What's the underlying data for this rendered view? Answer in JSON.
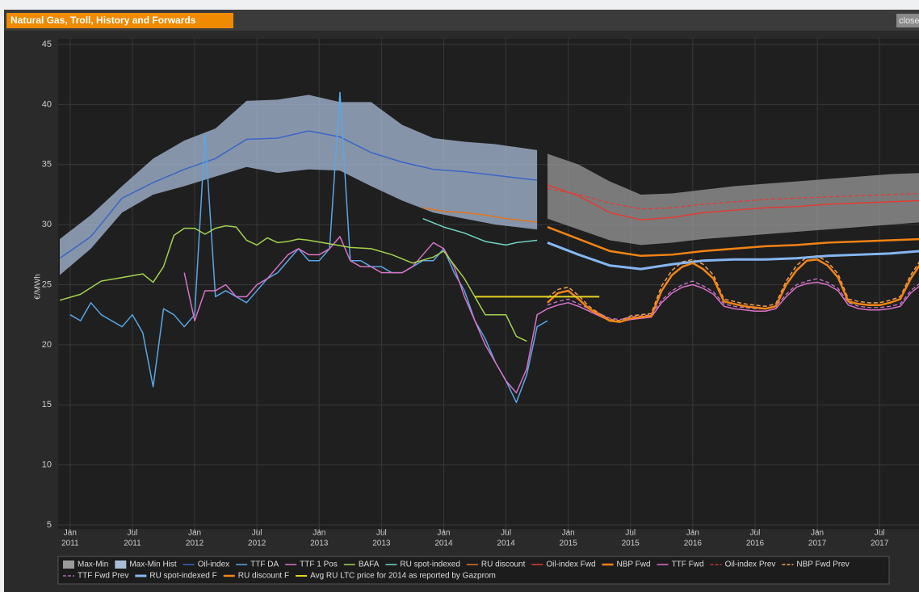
{
  "chart_data": {
    "type": "line",
    "title": "Natural Gas, Troll, History and Forwards",
    "close_label": "close",
    "y_label": "€/MWh",
    "xlim": [
      "2010-12",
      "2017-12"
    ],
    "ylim": [
      5,
      45
    ],
    "yticks": [
      5,
      10,
      15,
      20,
      25,
      30,
      35,
      40,
      45
    ],
    "grid": true,
    "legend": "bottom",
    "xticks": [
      {
        "value": "2011-01",
        "label": [
          "Jan",
          "2011"
        ]
      },
      {
        "value": "2011-07",
        "label": [
          "Jul",
          "2011"
        ]
      },
      {
        "value": "2012-01",
        "label": [
          "Jan",
          "2012"
        ]
      },
      {
        "value": "2012-07",
        "label": [
          "Jul",
          "2012"
        ]
      },
      {
        "value": "2013-01",
        "label": [
          "Jan",
          "2013"
        ]
      },
      {
        "value": "2013-07",
        "label": [
          "Jul",
          "2013"
        ]
      },
      {
        "value": "2014-01",
        "label": [
          "Jan",
          "2014"
        ]
      },
      {
        "value": "2014-07",
        "label": [
          "Jul",
          "2014"
        ]
      },
      {
        "value": "2015-01",
        "label": [
          "Jan",
          "2015"
        ]
      },
      {
        "value": "2015-07",
        "label": [
          "Jul",
          "2015"
        ]
      },
      {
        "value": "2016-01",
        "label": [
          "Jan",
          "2016"
        ]
      },
      {
        "value": "2016-07",
        "label": [
          "Jul",
          "2016"
        ]
      },
      {
        "value": "2017-01",
        "label": [
          "Jan",
          "2017"
        ]
      },
      {
        "value": "2017-07",
        "label": [
          "Jul",
          "2017"
        ]
      }
    ],
    "series": [
      {
        "name": "Max-Min",
        "kind": "band",
        "color": "#9a9a9a",
        "x": [
          "2014-11",
          "2015-02",
          "2015-05",
          "2015-08",
          "2015-11",
          "2016-02",
          "2016-05",
          "2016-08",
          "2016-11",
          "2017-02",
          "2017-05",
          "2017-08",
          "2017-11"
        ],
        "upper": [
          35.9,
          35.0,
          33.6,
          32.5,
          32.6,
          32.9,
          33.2,
          33.4,
          33.6,
          33.8,
          34.0,
          34.2,
          34.3
        ],
        "lower": [
          30.5,
          29.6,
          28.7,
          28.3,
          28.5,
          28.8,
          29.0,
          29.2,
          29.4,
          29.6,
          29.8,
          30.0,
          30.2
        ]
      },
      {
        "name": "Max-Min Hist",
        "kind": "band",
        "color": "#a8bcd8",
        "x": [
          "2010-12",
          "2011-03",
          "2011-06",
          "2011-09",
          "2011-12",
          "2012-03",
          "2012-06",
          "2012-09",
          "2012-12",
          "2013-03",
          "2013-06",
          "2013-09",
          "2013-12",
          "2014-03",
          "2014-06",
          "2014-10"
        ],
        "upper": [
          28.8,
          30.8,
          33.2,
          35.5,
          37.0,
          38.0,
          40.3,
          40.4,
          40.8,
          40.2,
          40.2,
          38.3,
          37.2,
          36.9,
          36.7,
          36.2
        ],
        "lower": [
          25.8,
          28.0,
          31.0,
          32.5,
          33.2,
          34.0,
          34.8,
          34.3,
          34.6,
          34.5,
          33.2,
          32.0,
          31.0,
          30.5,
          30.0,
          29.6
        ]
      },
      {
        "name": "Oil-index",
        "kind": "line",
        "color": "#3b66c4",
        "width": 1.5,
        "x": [
          "2010-12",
          "2011-03",
          "2011-06",
          "2011-09",
          "2011-12",
          "2012-03",
          "2012-06",
          "2012-09",
          "2012-12",
          "2013-03",
          "2013-06",
          "2013-09",
          "2013-12",
          "2014-03",
          "2014-06",
          "2014-10"
        ],
        "values": [
          27.2,
          29.0,
          32.2,
          33.5,
          34.6,
          35.5,
          37.1,
          37.2,
          37.8,
          37.3,
          36.0,
          35.2,
          34.6,
          34.4,
          34.1,
          33.7
        ]
      },
      {
        "name": "TTF DA",
        "kind": "line",
        "color": "#5aa6e6",
        "width": 1.5,
        "x": [
          "2011-01",
          "2011-02",
          "2011-03",
          "2011-04",
          "2011-05",
          "2011-06",
          "2011-07",
          "2011-08",
          "2011-09",
          "2011-10",
          "2011-11",
          "2011-12",
          "2012-01",
          "2012-02",
          "2012-03",
          "2012-04",
          "2012-05",
          "2012-06",
          "2012-07",
          "2012-08",
          "2012-09",
          "2012-10",
          "2012-11",
          "2012-12",
          "2013-01",
          "2013-02",
          "2013-03",
          "2013-04",
          "2013-05",
          "2013-06",
          "2013-07",
          "2013-08",
          "2013-09",
          "2013-10",
          "2013-11",
          "2013-12",
          "2014-01",
          "2014-02",
          "2014-03",
          "2014-04",
          "2014-05",
          "2014-06",
          "2014-07",
          "2014-08",
          "2014-09",
          "2014-10",
          "2014-11"
        ],
        "values": [
          22.5,
          22,
          23.5,
          22.5,
          22,
          21.5,
          22.5,
          21,
          16.5,
          23,
          22.5,
          21.5,
          22.5,
          37.5,
          24,
          24.5,
          24,
          23.5,
          24.5,
          25.5,
          26,
          27,
          28,
          27,
          27,
          28,
          41,
          27,
          27,
          26.5,
          26.5,
          26,
          26,
          26.5,
          27,
          27,
          28,
          26,
          24.5,
          22,
          20.5,
          18.5,
          17,
          15.2,
          17.5,
          21.5,
          22
        ]
      },
      {
        "name": "TTF 1 Pos",
        "kind": "line",
        "color": "#d873c8",
        "width": 1.5,
        "x": [
          "2011-12",
          "2012-01",
          "2012-02",
          "2012-03",
          "2012-04",
          "2012-05",
          "2012-06",
          "2012-07",
          "2012-08",
          "2012-09",
          "2012-10",
          "2012-11",
          "2012-12",
          "2013-01",
          "2013-02",
          "2013-03",
          "2013-04",
          "2013-05",
          "2013-06",
          "2013-07",
          "2013-08",
          "2013-09",
          "2013-10",
          "2013-11",
          "2013-12",
          "2014-01",
          "2014-02",
          "2014-03",
          "2014-04",
          "2014-05",
          "2014-06",
          "2014-07",
          "2014-08",
          "2014-09",
          "2014-10",
          "2014-11"
        ],
        "values": [
          26,
          22,
          24.5,
          24.5,
          25,
          24,
          24,
          25,
          25.5,
          26.5,
          27.5,
          28,
          27.5,
          27.5,
          28,
          29,
          27,
          26.5,
          26.5,
          26,
          26,
          26,
          26.5,
          27.5,
          28.5,
          28,
          26.5,
          24,
          22,
          20,
          18.5,
          17,
          16,
          18,
          22.5,
          23
        ]
      },
      {
        "name": "BAFA",
        "kind": "line",
        "color": "#a4d24e",
        "width": 1.5,
        "x": [
          "2010-12",
          "2011-02",
          "2011-04",
          "2011-06",
          "2011-08",
          "2011-09",
          "2011-10",
          "2011-11",
          "2011-12",
          "2012-01",
          "2012-02",
          "2012-03",
          "2012-04",
          "2012-05",
          "2012-06",
          "2012-07",
          "2012-08",
          "2012-09",
          "2012-10",
          "2012-11",
          "2012-12",
          "2013-02",
          "2013-04",
          "2013-06",
          "2013-08",
          "2013-10",
          "2013-12",
          "2014-01",
          "2014-03",
          "2014-05",
          "2014-07",
          "2014-08",
          "2014-09"
        ],
        "values": [
          23.7,
          24.2,
          25.3,
          25.6,
          25.9,
          25.2,
          26.5,
          29.1,
          29.7,
          29.7,
          29.2,
          29.7,
          29.9,
          29.8,
          28.7,
          28.3,
          28.9,
          28.5,
          28.6,
          28.8,
          28.7,
          28.4,
          28.1,
          28.0,
          27.5,
          26.8,
          27.3,
          27.8,
          25.5,
          22.5,
          22.5,
          20.7,
          20.3
        ]
      },
      {
        "name": "RU spot-indexed",
        "kind": "line",
        "color": "#72d4c4",
        "width": 1.5,
        "x": [
          "2013-11",
          "2014-01",
          "2014-03",
          "2014-05",
          "2014-07",
          "2014-08",
          "2014-10"
        ],
        "values": [
          30.5,
          29.8,
          29.3,
          28.6,
          28.3,
          28.5,
          28.7
        ]
      },
      {
        "name": "RU discount",
        "kind": "line",
        "color": "#e2741e",
        "width": 1.5,
        "x": [
          "2013-11",
          "2014-01",
          "2014-03",
          "2014-05",
          "2014-07",
          "2014-10"
        ],
        "values": [
          31.4,
          31.1,
          31.0,
          30.8,
          30.5,
          30.2
        ]
      },
      {
        "name": "Oil-index Fwd",
        "kind": "line",
        "color": "#e23a34",
        "width": 1.5,
        "x": [
          "2014-11",
          "2015-02",
          "2015-05",
          "2015-08",
          "2015-11",
          "2016-02",
          "2016-05",
          "2016-08",
          "2016-11",
          "2017-02",
          "2017-05",
          "2017-08",
          "2017-11"
        ],
        "values": [
          33.3,
          32.4,
          31.0,
          30.4,
          30.6,
          31.0,
          31.2,
          31.4,
          31.5,
          31.7,
          31.8,
          31.9,
          32.0
        ]
      },
      {
        "name": "NBP Fwd",
        "kind": "line",
        "color": "#f28414",
        "width": 2.5,
        "x": [
          "2014-11",
          "2015-02",
          "2015-05",
          "2015-08",
          "2015-11",
          "2016-02",
          "2016-05",
          "2016-08",
          "2016-11",
          "2017-02",
          "2017-05",
          "2017-08",
          "2017-11"
        ],
        "values": [
          29.8,
          28.8,
          27.8,
          27.4,
          27.5,
          27.8,
          28.0,
          28.2,
          28.3,
          28.5,
          28.6,
          28.7,
          28.8
        ]
      },
      {
        "name": "TTF Fwd",
        "kind": "line",
        "color": "#d873c8",
        "width": 1.5,
        "x": [
          "2014-11",
          "2014-12",
          "2015-01",
          "2015-02",
          "2015-03",
          "2015-04",
          "2015-05",
          "2015-06",
          "2015-07",
          "2015-08",
          "2015-09",
          "2015-10",
          "2015-11",
          "2015-12",
          "2016-01",
          "2016-02",
          "2016-03",
          "2016-04",
          "2016-05",
          "2016-06",
          "2016-07",
          "2016-08",
          "2016-09",
          "2016-10",
          "2016-11",
          "2016-12",
          "2017-01",
          "2017-02",
          "2017-03",
          "2017-04",
          "2017-05",
          "2017-06",
          "2017-07",
          "2017-08",
          "2017-09",
          "2017-10",
          "2017-11"
        ],
        "values": [
          23.0,
          23.3,
          23.5,
          23.2,
          22.8,
          22.4,
          22.0,
          21.9,
          22.1,
          22.2,
          22.3,
          23.5,
          24.3,
          24.8,
          25.0,
          24.7,
          24.2,
          23.2,
          23.0,
          22.9,
          22.8,
          22.8,
          23.0,
          24.0,
          24.8,
          25.1,
          25.2,
          25.0,
          24.5,
          23.3,
          23.0,
          22.9,
          22.9,
          23.0,
          23.2,
          24.3,
          25.0
        ]
      },
      {
        "name": "Oil-index Prev",
        "kind": "line",
        "color": "#e23a34",
        "width": 1.3,
        "dashed": true,
        "x": [
          "2014-11",
          "2015-02",
          "2015-05",
          "2015-08",
          "2015-11",
          "2016-02",
          "2016-05",
          "2016-08",
          "2016-11",
          "2017-02",
          "2017-05",
          "2017-08",
          "2017-11"
        ],
        "values": [
          33.0,
          32.5,
          31.8,
          31.3,
          31.4,
          31.7,
          31.9,
          32.1,
          32.2,
          32.3,
          32.4,
          32.5,
          32.6
        ]
      },
      {
        "name": "NBP Fwd Prev",
        "kind": "line",
        "color": "#f0a050",
        "width": 1.5,
        "dashed": true,
        "x": [
          "2014-11",
          "2014-12",
          "2015-01",
          "2015-02",
          "2015-03",
          "2015-04",
          "2015-05",
          "2015-06",
          "2015-07",
          "2015-08",
          "2015-09",
          "2015-10",
          "2015-11",
          "2015-12",
          "2016-01",
          "2016-02",
          "2016-03",
          "2016-04",
          "2016-05",
          "2016-06",
          "2016-07",
          "2016-08",
          "2016-09",
          "2016-10",
          "2016-11",
          "2016-12",
          "2017-01",
          "2017-02",
          "2017-03",
          "2017-04",
          "2017-05",
          "2017-06",
          "2017-07",
          "2017-08",
          "2017-09",
          "2017-10",
          "2017-11"
        ],
        "values": [
          23.9,
          24.6,
          24.8,
          24.1,
          23.2,
          22.6,
          22.1,
          22.0,
          22.4,
          22.5,
          22.6,
          24.9,
          26.2,
          26.9,
          27.1,
          26.7,
          25.8,
          23.8,
          23.6,
          23.4,
          23.3,
          23.2,
          23.4,
          25.3,
          26.6,
          27.3,
          27.4,
          26.9,
          25.9,
          23.8,
          23.6,
          23.5,
          23.5,
          23.7,
          24.0,
          25.8,
          27.1
        ]
      },
      {
        "name": "TTF Fwd Prev",
        "kind": "line",
        "color": "#c878c8",
        "width": 1.3,
        "dashed": true,
        "x": [
          "2014-11",
          "2014-12",
          "2015-01",
          "2015-02",
          "2015-03",
          "2015-04",
          "2015-05",
          "2015-06",
          "2015-07",
          "2015-08",
          "2015-09",
          "2015-10",
          "2015-11",
          "2015-12",
          "2016-01",
          "2016-02",
          "2016-03",
          "2016-04",
          "2016-05",
          "2016-06",
          "2016-07",
          "2016-08",
          "2016-09",
          "2016-10",
          "2016-11",
          "2016-12",
          "2017-01",
          "2017-02",
          "2017-03",
          "2017-04",
          "2017-05",
          "2017-06",
          "2017-07",
          "2017-08",
          "2017-09",
          "2017-10",
          "2017-11"
        ],
        "values": [
          23.3,
          23.6,
          23.8,
          23.4,
          23.0,
          22.6,
          22.2,
          22.1,
          22.3,
          22.4,
          22.5,
          23.7,
          24.5,
          25.0,
          25.3,
          24.9,
          24.4,
          23.4,
          23.2,
          23.1,
          23.0,
          23.0,
          23.2,
          24.2,
          25.0,
          25.3,
          25.5,
          25.2,
          24.7,
          23.5,
          23.2,
          23.1,
          23.1,
          23.2,
          23.4,
          24.5,
          25.2
        ]
      },
      {
        "name": "RU spot-indexed F",
        "kind": "line",
        "color": "#86b6f2",
        "width": 3,
        "x": [
          "2014-11",
          "2015-02",
          "2015-05",
          "2015-08",
          "2015-11",
          "2016-02",
          "2016-05",
          "2016-08",
          "2016-11",
          "2017-02",
          "2017-05",
          "2017-08",
          "2017-11"
        ],
        "values": [
          28.5,
          27.5,
          26.6,
          26.3,
          26.7,
          27.0,
          27.1,
          27.1,
          27.2,
          27.4,
          27.5,
          27.6,
          27.8
        ]
      },
      {
        "name": "RU discount F",
        "kind": "line",
        "color": "#f28414",
        "width": 2.5,
        "x": [
          "2014-11",
          "2014-12",
          "2015-01",
          "2015-02",
          "2015-03",
          "2015-04",
          "2015-05",
          "2015-06",
          "2015-07",
          "2015-08",
          "2015-09",
          "2015-10",
          "2015-11",
          "2015-12",
          "2016-01",
          "2016-02",
          "2016-03",
          "2016-04",
          "2016-05",
          "2016-06",
          "2016-07",
          "2016-08",
          "2016-09",
          "2016-10",
          "2016-11",
          "2016-12",
          "2017-01",
          "2017-02",
          "2017-03",
          "2017-04",
          "2017-05",
          "2017-06",
          "2017-07",
          "2017-08",
          "2017-09",
          "2017-10",
          "2017-11"
        ],
        "values": [
          23.5,
          24.3,
          24.5,
          23.8,
          23.0,
          22.5,
          22.0,
          21.9,
          22.2,
          22.3,
          22.4,
          24.5,
          25.8,
          26.5,
          26.8,
          26.3,
          25.5,
          23.6,
          23.4,
          23.2,
          23.1,
          23.0,
          23.2,
          25.0,
          26.2,
          27.0,
          27.1,
          26.6,
          25.6,
          23.6,
          23.4,
          23.3,
          23.3,
          23.5,
          23.8,
          25.5,
          26.8
        ]
      },
      {
        "name": "Avg RU LTC price for 2014 as reported by Gazprom",
        "kind": "line",
        "color": "#e2d422",
        "width": 2,
        "x": [
          "2014-04",
          "2015-04"
        ],
        "values": [
          24.0,
          24.0
        ]
      }
    ]
  }
}
